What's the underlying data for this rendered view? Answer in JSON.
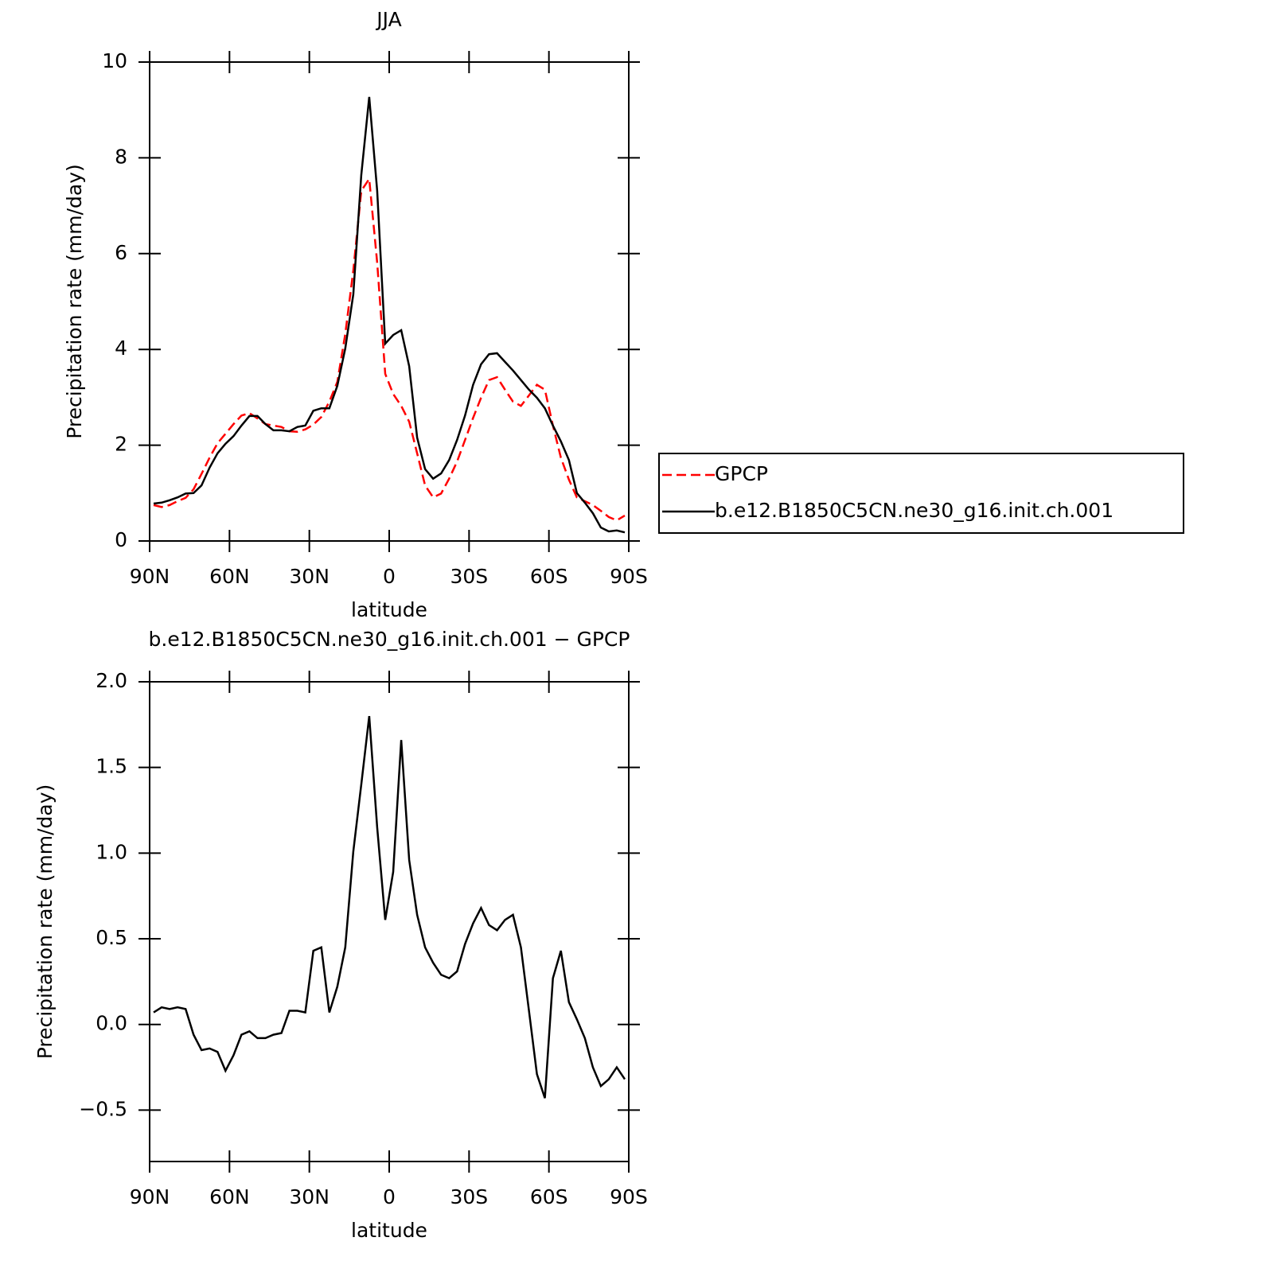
{
  "chart_data": [
    {
      "type": "line",
      "title": "JJA",
      "xlabel": "latitude",
      "ylabel": "Precipitation rate (mm/day)",
      "x": [
        88.5,
        85.5,
        82.5,
        79.5,
        76.5,
        73.5,
        70.5,
        67.5,
        64.5,
        61.5,
        58.5,
        55.5,
        52.5,
        49.5,
        46.5,
        43.5,
        40.5,
        37.5,
        34.5,
        31.5,
        28.5,
        25.5,
        22.5,
        19.5,
        16.5,
        13.5,
        10.5,
        7.5,
        4.5,
        1.5,
        -1.5,
        -4.5,
        -7.5,
        -10.5,
        -13.5,
        -16.5,
        -19.5,
        -22.5,
        -25.5,
        -28.5,
        -31.5,
        -34.5,
        -37.5,
        -40.5,
        -43.5,
        -46.5,
        -49.5,
        -52.5,
        -55.5,
        -58.5,
        -61.5,
        -64.5,
        -67.5,
        -70.5,
        -73.5,
        -76.5,
        -79.5,
        -82.5,
        -85.5,
        -88.5
      ],
      "series": [
        {
          "name": "GPCP",
          "color": "#ff0000",
          "line_style": "dashed",
          "values": [
            0.75,
            0.71,
            0.75,
            0.83,
            0.9,
            1.08,
            1.4,
            1.74,
            2.04,
            2.24,
            2.44,
            2.62,
            2.67,
            2.56,
            2.44,
            2.41,
            2.38,
            2.29,
            2.28,
            2.33,
            2.43,
            2.59,
            2.91,
            3.32,
            4.32,
            5.65,
            7.31,
            7.56,
            5.81,
            3.49,
            3.07,
            2.82,
            2.49,
            1.83,
            1.16,
            0.91,
            0.99,
            1.3,
            1.66,
            2.11,
            2.57,
            2.99,
            3.36,
            3.42,
            3.16,
            2.91,
            2.82,
            3.04,
            3.26,
            3.16,
            2.41,
            1.74,
            1.28,
            0.91,
            0.83,
            0.75,
            0.63,
            0.5,
            0.43,
            0.53
          ]
        },
        {
          "name": "b.e12.B1850C5CN.ne30_g16.init.ch.001",
          "color": "#000000",
          "line_style": "solid",
          "values": [
            0.78,
            0.8,
            0.85,
            0.91,
            0.99,
            1.0,
            1.16,
            1.53,
            1.83,
            2.03,
            2.19,
            2.41,
            2.61,
            2.61,
            2.44,
            2.31,
            2.31,
            2.29,
            2.38,
            2.41,
            2.72,
            2.77,
            2.77,
            3.24,
            4.02,
            5.15,
            7.64,
            9.27,
            7.31,
            4.12,
            4.3,
            4.4,
            3.65,
            2.16,
            1.5,
            1.3,
            1.41,
            1.69,
            2.11,
            2.62,
            3.26,
            3.69,
            3.9,
            3.92,
            3.74,
            3.56,
            3.36,
            3.16,
            2.99,
            2.77,
            2.41,
            2.08,
            1.69,
            1.0,
            0.8,
            0.58,
            0.28,
            0.2,
            0.22,
            0.18
          ]
        }
      ],
      "xlim": [
        90,
        -90
      ],
      "xticks": [
        {
          "value": 90,
          "label": "90N"
        },
        {
          "value": 60,
          "label": "60N"
        },
        {
          "value": 30,
          "label": "30N"
        },
        0,
        {
          "value": -30,
          "label": "30S"
        },
        {
          "value": -60,
          "label": "60S"
        },
        {
          "value": -90,
          "label": "90S"
        }
      ],
      "ylim": [
        0,
        10
      ],
      "yticks": [
        0,
        2,
        4,
        6,
        8,
        10
      ],
      "grid": false,
      "legend": "right"
    },
    {
      "type": "line",
      "title": "b.e12.B1850C5CN.ne30_g16.init.ch.001 − GPCP",
      "xlabel": "latitude",
      "ylabel": "Precipitation rate (mm/day)",
      "x": [
        88.5,
        85.5,
        82.5,
        79.5,
        76.5,
        73.5,
        70.5,
        67.5,
        64.5,
        61.5,
        58.5,
        55.5,
        52.5,
        49.5,
        46.5,
        43.5,
        40.5,
        37.5,
        34.5,
        31.5,
        28.5,
        25.5,
        22.5,
        19.5,
        16.5,
        13.5,
        10.5,
        7.5,
        4.5,
        1.5,
        -1.5,
        -4.5,
        -7.5,
        -10.5,
        -13.5,
        -16.5,
        -19.5,
        -22.5,
        -25.5,
        -28.5,
        -31.5,
        -34.5,
        -37.5,
        -40.5,
        -43.5,
        -46.5,
        -49.5,
        -52.5,
        -55.5,
        -58.5,
        -61.5,
        -64.5,
        -67.5,
        -70.5,
        -73.5,
        -76.5,
        -79.5,
        -82.5,
        -85.5,
        -88.5
      ],
      "values": [
        0.07,
        0.1,
        0.09,
        0.1,
        0.09,
        -0.06,
        -0.15,
        -0.14,
        -0.16,
        -0.27,
        -0.18,
        -0.06,
        -0.04,
        -0.08,
        -0.08,
        -0.06,
        -0.05,
        0.08,
        0.08,
        0.07,
        0.43,
        0.45,
        0.07,
        0.22,
        0.45,
        1.01,
        1.4,
        1.8,
        1.15,
        0.61,
        0.89,
        1.66,
        0.96,
        0.64,
        0.45,
        0.36,
        0.29,
        0.27,
        0.31,
        0.47,
        0.59,
        0.68,
        0.58,
        0.55,
        0.61,
        0.64,
        0.45,
        0.08,
        -0.29,
        -0.43,
        0.27,
        0.43,
        0.13,
        0.03,
        -0.08,
        -0.25,
        -0.36,
        -0.32,
        -0.25,
        -0.32
      ],
      "color": "#000000",
      "xlim": [
        90,
        -90
      ],
      "xticks": [
        {
          "value": 90,
          "label": "90N"
        },
        {
          "value": 60,
          "label": "60N"
        },
        {
          "value": 30,
          "label": "30N"
        },
        0,
        {
          "value": -30,
          "label": "30S"
        },
        {
          "value": -60,
          "label": "60S"
        },
        {
          "value": -90,
          "label": "90S"
        }
      ],
      "ylim": [
        -0.8,
        2.0
      ],
      "yticks": [
        {
          "value": -0.5,
          "label": "−0.5"
        },
        {
          "value": 0,
          "label": "0.0"
        },
        0.5,
        {
          "value": 1,
          "label": "1.0"
        },
        1.5,
        {
          "value": 2,
          "label": "2.0"
        }
      ],
      "grid": false
    }
  ]
}
